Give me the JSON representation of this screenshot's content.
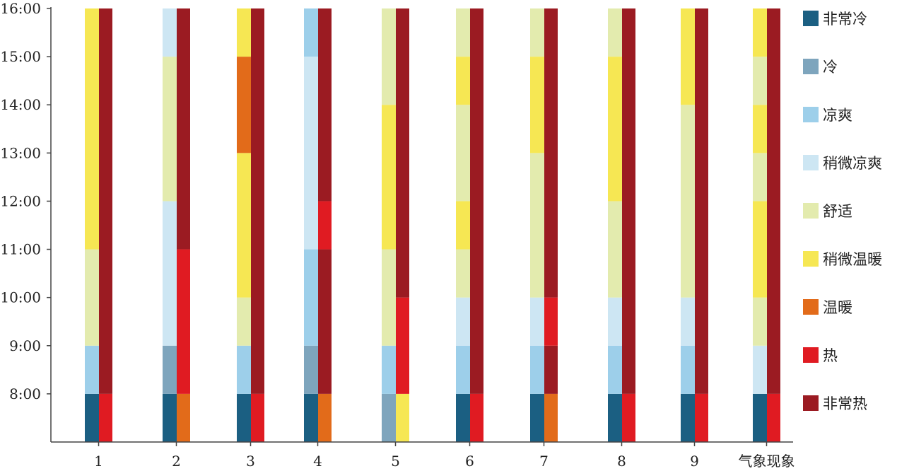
{
  "chart_data": {
    "type": "bar",
    "stacked": true,
    "y_ticks": [
      "8:00",
      "9:00",
      "10:00",
      "11:00",
      "12:00",
      "13:00",
      "14:00",
      "15:00",
      "16:00"
    ],
    "categories": [
      "1",
      "2",
      "3",
      "4",
      "5",
      "6",
      "7",
      "8",
      "9",
      "气象现象"
    ],
    "legend": [
      {
        "name": "非常冷",
        "color": "#1b5f82"
      },
      {
        "name": "冷",
        "color": "#7ea5bd"
      },
      {
        "name": "凉爽",
        "color": "#9dcfea"
      },
      {
        "name": "稍微凉爽",
        "color": "#cde6f3"
      },
      {
        "name": "舒适",
        "color": "#e3ebae"
      },
      {
        "name": "稍微温暖",
        "color": "#f6e753"
      },
      {
        "name": "温暖",
        "color": "#e26b1a"
      },
      {
        "name": "热",
        "color": "#e01b22"
      },
      {
        "name": "非常热",
        "color": "#9b1b22"
      }
    ],
    "legend_position": "right",
    "columns": [
      {
        "category": "1",
        "left": [
          {
            "from": 7,
            "to": 8,
            "level": "非常冷"
          },
          {
            "from": 8,
            "to": 9,
            "level": "凉爽"
          },
          {
            "from": 9,
            "to": 11,
            "level": "舒适"
          },
          {
            "from": 11,
            "to": 16,
            "level": "稍微温暖"
          }
        ],
        "right": [
          {
            "from": 7,
            "to": 8,
            "level": "热"
          },
          {
            "from": 8,
            "to": 16,
            "level": "非常热"
          }
        ]
      },
      {
        "category": "2",
        "left": [
          {
            "from": 7,
            "to": 8,
            "level": "非常冷"
          },
          {
            "from": 8,
            "to": 9,
            "level": "冷"
          },
          {
            "from": 9,
            "to": 12,
            "level": "稍微凉爽"
          },
          {
            "from": 12,
            "to": 15,
            "level": "舒适"
          },
          {
            "from": 15,
            "to": 16,
            "level": "稍微凉爽"
          }
        ],
        "right": [
          {
            "from": 7,
            "to": 8,
            "level": "温暖"
          },
          {
            "from": 8,
            "to": 11,
            "level": "热"
          },
          {
            "from": 11,
            "to": 16,
            "level": "非常热"
          }
        ]
      },
      {
        "category": "3",
        "left": [
          {
            "from": 7,
            "to": 8,
            "level": "非常冷"
          },
          {
            "from": 8,
            "to": 9,
            "level": "凉爽"
          },
          {
            "from": 9,
            "to": 10,
            "level": "舒适"
          },
          {
            "from": 10,
            "to": 13,
            "level": "稍微温暖"
          },
          {
            "from": 13,
            "to": 15,
            "level": "温暖"
          },
          {
            "from": 15,
            "to": 16,
            "level": "稍微温暖"
          }
        ],
        "right": [
          {
            "from": 7,
            "to": 8,
            "level": "热"
          },
          {
            "from": 8,
            "to": 16,
            "level": "非常热"
          }
        ]
      },
      {
        "category": "4",
        "left": [
          {
            "from": 7,
            "to": 8,
            "level": "非常冷"
          },
          {
            "from": 8,
            "to": 9,
            "level": "冷"
          },
          {
            "from": 9,
            "to": 11,
            "level": "凉爽"
          },
          {
            "from": 11,
            "to": 15,
            "level": "稍微凉爽"
          },
          {
            "from": 15,
            "to": 16,
            "level": "凉爽"
          }
        ],
        "right": [
          {
            "from": 7,
            "to": 8,
            "level": "温暖"
          },
          {
            "from": 8,
            "to": 11,
            "level": "非常热"
          },
          {
            "from": 11,
            "to": 12,
            "level": "热"
          },
          {
            "from": 12,
            "to": 16,
            "level": "非常热"
          }
        ]
      },
      {
        "category": "5",
        "left": [
          {
            "from": 7,
            "to": 8,
            "level": "冷"
          },
          {
            "from": 8,
            "to": 9,
            "level": "凉爽"
          },
          {
            "from": 9,
            "to": 11,
            "level": "舒适"
          },
          {
            "from": 11,
            "to": 14,
            "level": "稍微温暖"
          },
          {
            "from": 14,
            "to": 16,
            "level": "舒适"
          }
        ],
        "right": [
          {
            "from": 7,
            "to": 8,
            "level": "稍微温暖"
          },
          {
            "from": 8,
            "to": 10,
            "level": "热"
          },
          {
            "from": 10,
            "to": 16,
            "level": "非常热"
          }
        ]
      },
      {
        "category": "6",
        "left": [
          {
            "from": 7,
            "to": 8,
            "level": "非常冷"
          },
          {
            "from": 8,
            "to": 9,
            "level": "凉爽"
          },
          {
            "from": 9,
            "to": 10,
            "level": "稍微凉爽"
          },
          {
            "from": 10,
            "to": 11,
            "level": "舒适"
          },
          {
            "from": 11,
            "to": 12,
            "level": "稍微温暖"
          },
          {
            "from": 12,
            "to": 14,
            "level": "舒适"
          },
          {
            "from": 14,
            "to": 15,
            "level": "稍微温暖"
          },
          {
            "from": 15,
            "to": 16,
            "level": "舒适"
          }
        ],
        "right": [
          {
            "from": 7,
            "to": 8,
            "level": "热"
          },
          {
            "from": 8,
            "to": 16,
            "level": "非常热"
          }
        ]
      },
      {
        "category": "7",
        "left": [
          {
            "from": 7,
            "to": 8,
            "level": "非常冷"
          },
          {
            "from": 8,
            "to": 9,
            "level": "凉爽"
          },
          {
            "from": 9,
            "to": 10,
            "level": "稍微凉爽"
          },
          {
            "from": 10,
            "to": 13,
            "level": "舒适"
          },
          {
            "from": 13,
            "to": 15,
            "level": "稍微温暖"
          },
          {
            "from": 15,
            "to": 16,
            "level": "舒适"
          }
        ],
        "right": [
          {
            "from": 7,
            "to": 8,
            "level": "温暖"
          },
          {
            "from": 8,
            "to": 9,
            "level": "非常热"
          },
          {
            "from": 9,
            "to": 10,
            "level": "热"
          },
          {
            "from": 10,
            "to": 16,
            "level": "非常热"
          }
        ]
      },
      {
        "category": "8",
        "left": [
          {
            "from": 7,
            "to": 8,
            "level": "非常冷"
          },
          {
            "from": 8,
            "to": 9,
            "level": "凉爽"
          },
          {
            "from": 9,
            "to": 10,
            "level": "稍微凉爽"
          },
          {
            "from": 10,
            "to": 12,
            "level": "舒适"
          },
          {
            "from": 12,
            "to": 15,
            "level": "稍微温暖"
          },
          {
            "from": 15,
            "to": 16,
            "level": "舒适"
          }
        ],
        "right": [
          {
            "from": 7,
            "to": 8,
            "level": "热"
          },
          {
            "from": 8,
            "to": 16,
            "level": "非常热"
          }
        ]
      },
      {
        "category": "9",
        "left": [
          {
            "from": 7,
            "to": 8,
            "level": "非常冷"
          },
          {
            "from": 8,
            "to": 9,
            "level": "凉爽"
          },
          {
            "from": 9,
            "to": 10,
            "level": "稍微凉爽"
          },
          {
            "from": 10,
            "to": 14,
            "level": "舒适"
          },
          {
            "from": 14,
            "to": 16,
            "level": "稍微温暖"
          }
        ],
        "right": [
          {
            "from": 7,
            "to": 8,
            "level": "热"
          },
          {
            "from": 8,
            "to": 16,
            "level": "非常热"
          }
        ]
      },
      {
        "category": "气象现象",
        "left": [
          {
            "from": 7,
            "to": 8,
            "level": "非常冷"
          },
          {
            "from": 8,
            "to": 9,
            "level": "稍微凉爽"
          },
          {
            "from": 9,
            "to": 10,
            "level": "舒适"
          },
          {
            "from": 10,
            "to": 12,
            "level": "稍微温暖"
          },
          {
            "from": 12,
            "to": 13,
            "level": "舒适"
          },
          {
            "from": 13,
            "to": 14,
            "level": "稍微温暖"
          },
          {
            "from": 14,
            "to": 15,
            "level": "舒适"
          },
          {
            "from": 15,
            "to": 16,
            "level": "稍微温暖"
          }
        ],
        "right": [
          {
            "from": 7,
            "to": 8,
            "level": "热"
          },
          {
            "from": 8,
            "to": 16,
            "level": "非常热"
          }
        ]
      }
    ]
  }
}
